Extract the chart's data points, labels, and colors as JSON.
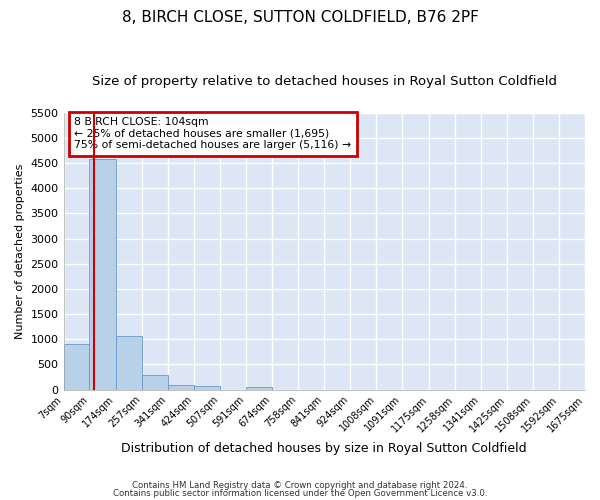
{
  "title": "8, BIRCH CLOSE, SUTTON COLDFIELD, B76 2PF",
  "subtitle": "Size of property relative to detached houses in Royal Sutton Coldfield",
  "xlabel": "Distribution of detached houses by size in Royal Sutton Coldfield",
  "ylabel": "Number of detached properties",
  "footer1": "Contains HM Land Registry data © Crown copyright and database right 2024.",
  "footer2": "Contains public sector information licensed under the Open Government Licence v3.0.",
  "annotation_line1": "8 BIRCH CLOSE: 104sqm",
  "annotation_line2": "← 25% of detached houses are smaller (1,695)",
  "annotation_line3": "75% of semi-detached houses are larger (5,116) →",
  "bar_color": "#b8d0e8",
  "bar_edge_color": "#6699cc",
  "property_line_color": "#cc0000",
  "property_size": 104,
  "bin_edges": [
    7,
    90,
    174,
    257,
    341,
    424,
    507,
    591,
    674,
    758,
    841,
    924,
    1008,
    1091,
    1175,
    1258,
    1341,
    1425,
    1508,
    1592,
    1675
  ],
  "bar_values": [
    910,
    4580,
    1070,
    290,
    95,
    75,
    0,
    50,
    0,
    0,
    0,
    0,
    0,
    0,
    0,
    0,
    0,
    0,
    0,
    0
  ],
  "ylim": [
    0,
    5500
  ],
  "yticks": [
    0,
    500,
    1000,
    1500,
    2000,
    2500,
    3000,
    3500,
    4000,
    4500,
    5000,
    5500
  ],
  "plot_bg_color": "#dce6f5",
  "grid_color": "#ffffff",
  "fig_bg_color": "#ffffff",
  "title_fontsize": 11,
  "subtitle_fontsize": 9.5,
  "ylabel_fontsize": 8,
  "xlabel_fontsize": 9,
  "ytick_fontsize": 8,
  "xtick_fontsize": 7
}
